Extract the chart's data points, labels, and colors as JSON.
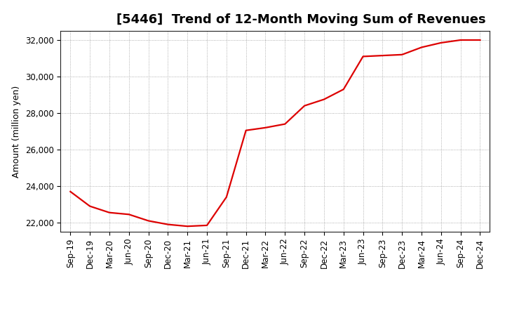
{
  "title": "[5446]  Trend of 12-Month Moving Sum of Revenues",
  "ylabel": "Amount (million yen)",
  "line_color": "#dd0000",
  "background_color": "#ffffff",
  "plot_bg_color": "#ffffff",
  "grid_color": "#999999",
  "x_labels": [
    "Sep-19",
    "Dec-19",
    "Mar-20",
    "Jun-20",
    "Sep-20",
    "Dec-20",
    "Mar-21",
    "Jun-21",
    "Sep-21",
    "Dec-21",
    "Mar-22",
    "Jun-22",
    "Sep-22",
    "Dec-22",
    "Mar-23",
    "Jun-23",
    "Sep-23",
    "Dec-23",
    "Mar-24",
    "Jun-24",
    "Sep-24",
    "Dec-24"
  ],
  "y_values": [
    23700,
    22900,
    22550,
    22450,
    22100,
    21900,
    21800,
    21850,
    23400,
    27050,
    27200,
    27400,
    28400,
    28750,
    29300,
    31100,
    31150,
    31200,
    31600,
    31850,
    32000,
    32000
  ],
  "ylim": [
    21500,
    32500
  ],
  "yticks": [
    22000,
    24000,
    26000,
    28000,
    30000,
    32000
  ],
  "title_fontsize": 13,
  "axis_fontsize": 9,
  "tick_fontsize": 8.5,
  "line_width": 1.6
}
